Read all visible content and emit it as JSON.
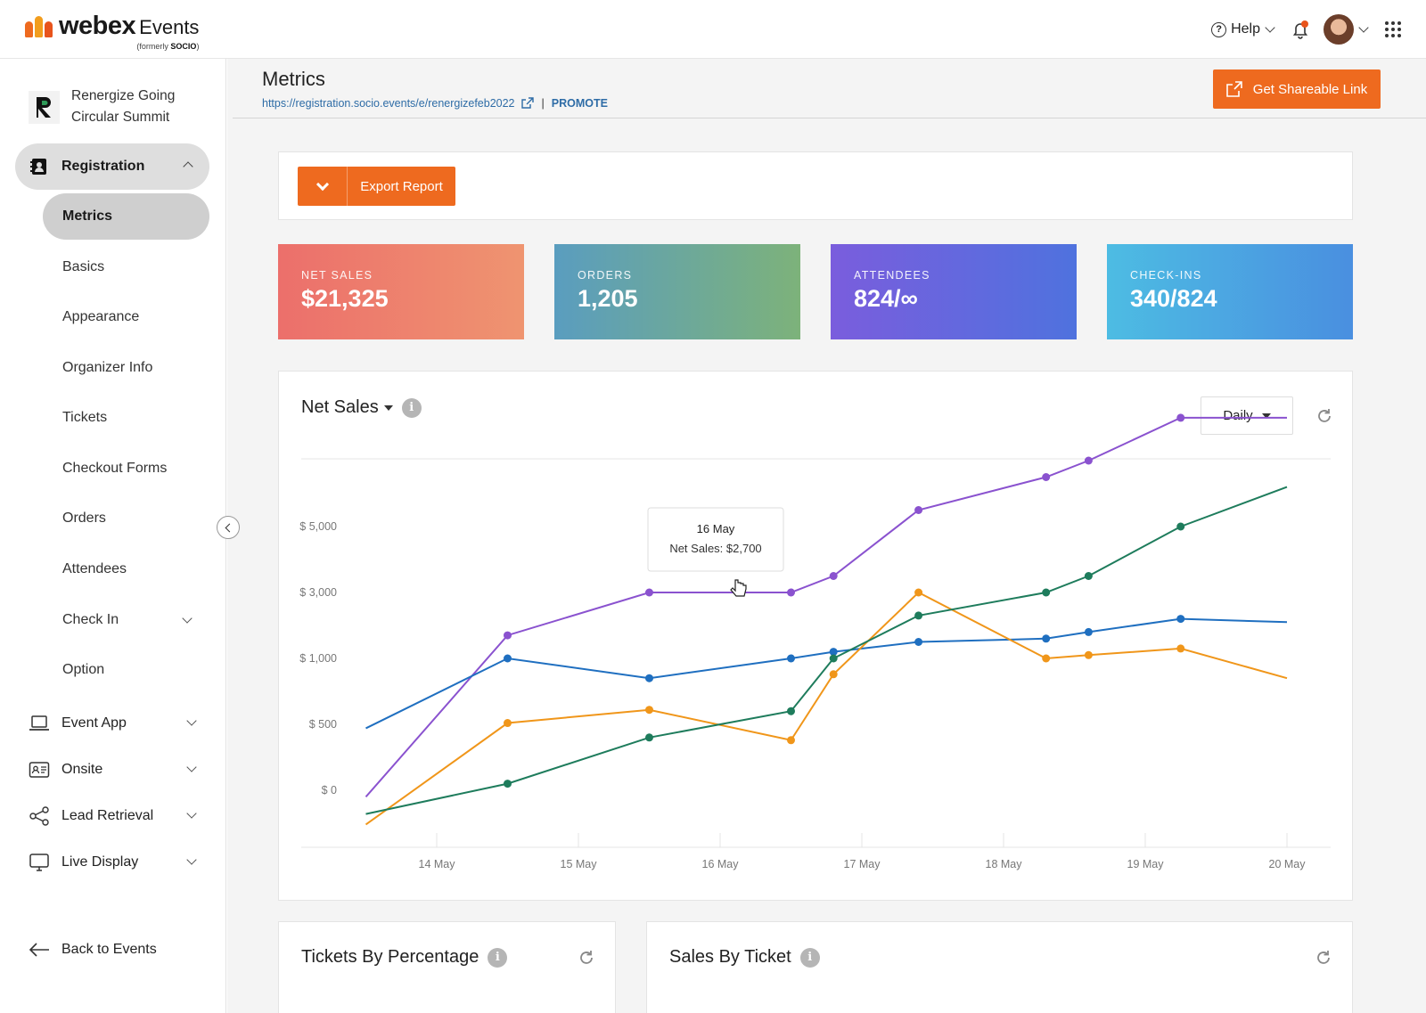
{
  "brand": {
    "name": "webex",
    "product": "Events",
    "formerly_prefix": "(formerly",
    "formerly_name": "SOCIO",
    "formerly_suffix": ")"
  },
  "topbar": {
    "help_label": "Help"
  },
  "sidebar": {
    "event_name": "Renergize Going Circular Summit",
    "registration_label": "Registration",
    "registration_items": [
      {
        "label": "Metrics",
        "active": true
      },
      {
        "label": "Basics"
      },
      {
        "label": "Appearance"
      },
      {
        "label": "Organizer Info"
      },
      {
        "label": "Tickets"
      },
      {
        "label": "Checkout Forms"
      },
      {
        "label": "Orders"
      },
      {
        "label": "Attendees"
      },
      {
        "label": "Check In"
      },
      {
        "label": "Option"
      }
    ],
    "sections": [
      {
        "label": "Event App",
        "icon": "laptop-icon"
      },
      {
        "label": "Onsite",
        "icon": "id-card-icon"
      },
      {
        "label": "Lead Retrieval",
        "icon": "share-icon"
      },
      {
        "label": "Live Display",
        "icon": "monitor-icon"
      }
    ],
    "back_label": "Back to Events"
  },
  "page": {
    "title": "Metrics",
    "url": "https://registration.socio.events/e/renergizefeb2022",
    "separator": "|",
    "promote_label": "PROMOTE",
    "share_label": "Get Shareable Link",
    "export_label": "Export Report"
  },
  "stats": [
    {
      "label": "NET SALES",
      "value": "$21,325",
      "gradient": [
        "#ec6f6b",
        "#ef9470"
      ]
    },
    {
      "label": "ORDERS",
      "value": "1,205",
      "gradient": [
        "#5a9dbf",
        "#7db27a"
      ]
    },
    {
      "label": "ATTENDEES",
      "value": "824/∞",
      "gradient": [
        "#7a5ddd",
        "#4f72de"
      ]
    },
    {
      "label": "CHECK-INS",
      "value": "340/824",
      "gradient": [
        "#4dbce3",
        "#4a8fe0"
      ]
    }
  ],
  "chart_panel": {
    "title": "Net Sales",
    "period_label": "Daily",
    "tooltip": {
      "date": "16 May",
      "text": "Net Sales: $2,700"
    }
  },
  "chart_data": {
    "type": "line",
    "title": "Net Sales",
    "y_tick_labels": [
      "$ 0",
      "$ 500",
      "$ 1,000",
      "$ 3,000",
      "$ 5,000"
    ],
    "y_tick_values": [
      0,
      500,
      1000,
      3000,
      5000
    ],
    "y_scale": "non-linear (ticks at 0, 500, 1,000, 3,000, 5,000)",
    "x_tick_labels": [
      "14 May",
      "15 May",
      "16 May",
      "17 May",
      "18 May",
      "19 May",
      "20 May"
    ],
    "grid": "top line only",
    "series": [
      {
        "color": "#8a52cf",
        "points": [
          [
            13.5,
            -50
          ],
          [
            14.5,
            1700
          ],
          [
            15.5,
            3000
          ],
          [
            16.5,
            3000
          ],
          [
            16.8,
            3500
          ],
          [
            17.4,
            5500
          ],
          [
            18.3,
            6500
          ],
          [
            18.6,
            7000
          ],
          [
            19.25,
            8300
          ],
          [
            20.0,
            8300
          ]
        ]
      },
      {
        "color": "#1f6fc0",
        "points": [
          [
            13.5,
            470
          ],
          [
            14.5,
            1000
          ],
          [
            15.5,
            850
          ],
          [
            16.5,
            1000
          ],
          [
            16.8,
            1200
          ],
          [
            17.4,
            1500
          ],
          [
            18.3,
            1600
          ],
          [
            18.6,
            1800
          ],
          [
            19.25,
            2200
          ],
          [
            20.0,
            2100
          ]
        ]
      },
      {
        "color": "#f0961a",
        "points": [
          [
            13.5,
            -260
          ],
          [
            14.5,
            510
          ],
          [
            15.5,
            610
          ],
          [
            16.5,
            380
          ],
          [
            16.8,
            880
          ],
          [
            17.4,
            3000
          ],
          [
            18.3,
            1000
          ],
          [
            18.6,
            1100
          ],
          [
            19.25,
            1300
          ],
          [
            20.0,
            850
          ]
        ]
      },
      {
        "color": "#1e7c5c",
        "points": [
          [
            13.5,
            -180
          ],
          [
            14.5,
            50
          ],
          [
            15.5,
            400
          ],
          [
            16.5,
            600
          ],
          [
            16.8,
            1000
          ],
          [
            17.4,
            2300
          ],
          [
            18.3,
            3000
          ],
          [
            18.6,
            3500
          ],
          [
            19.25,
            5000
          ],
          [
            20.0,
            6200
          ]
        ]
      }
    ]
  },
  "bottom_cards": [
    {
      "title": "Tickets By Percentage"
    },
    {
      "title": "Sales By Ticket"
    }
  ]
}
